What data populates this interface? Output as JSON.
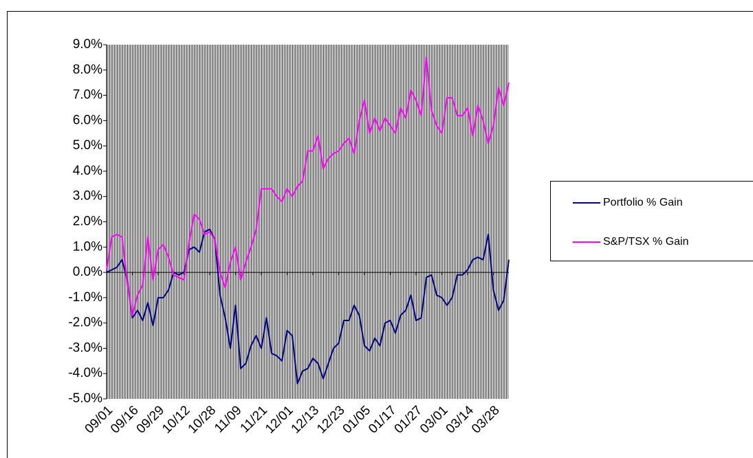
{
  "chart_data": {
    "type": "line",
    "categories": [
      "09/01",
      null,
      null,
      null,
      null,
      "09/16",
      null,
      null,
      null,
      null,
      "09/29",
      null,
      null,
      null,
      null,
      "10/12",
      null,
      null,
      null,
      null,
      "10/28",
      null,
      null,
      null,
      null,
      "11/09",
      null,
      null,
      null,
      null,
      "11/21",
      null,
      null,
      null,
      null,
      "12/01",
      null,
      null,
      null,
      null,
      "12/13",
      null,
      null,
      null,
      null,
      "12/23",
      null,
      null,
      null,
      null,
      "01/05",
      null,
      null,
      null,
      null,
      "01/17",
      null,
      null,
      null,
      null,
      "01/27",
      null,
      null,
      null,
      null,
      "03/01",
      null,
      null,
      null,
      null,
      "03/14",
      null,
      null,
      null,
      null,
      "03/28",
      null,
      null,
      null
    ],
    "series": [
      {
        "name": "Portfolio % Gain",
        "color": "#000080",
        "values": [
          0.0,
          0.1,
          0.2,
          0.5,
          -0.3,
          -1.8,
          -1.5,
          -1.9,
          -1.2,
          -2.1,
          -1.0,
          -1.0,
          -0.7,
          0.0,
          -0.1,
          0.0,
          0.9,
          1.0,
          0.8,
          1.6,
          1.7,
          1.3,
          -0.9,
          -1.8,
          -3.0,
          -1.3,
          -3.8,
          -3.6,
          -2.9,
          -2.5,
          -3.0,
          -1.8,
          -3.2,
          -3.3,
          -3.5,
          -2.3,
          -2.5,
          -4.4,
          -3.9,
          -3.8,
          -3.4,
          -3.6,
          -4.2,
          -3.6,
          -3.0,
          -2.8,
          -1.9,
          -1.9,
          -1.3,
          -1.7,
          -2.9,
          -3.1,
          -2.6,
          -2.9,
          -2.0,
          -1.9,
          -2.4,
          -1.7,
          -1.5,
          -0.9,
          -1.9,
          -1.8,
          -0.2,
          -0.1,
          -0.9,
          -1.0,
          -1.3,
          -1.0,
          -0.1,
          -0.1,
          0.1,
          0.5,
          0.6,
          0.5,
          1.5,
          -0.7,
          -1.5,
          -1.1,
          0.5
        ]
      },
      {
        "name": "S&P/TSX % Gain",
        "color": "#ff00ff",
        "values": [
          0.1,
          1.4,
          1.5,
          1.4,
          -0.4,
          -1.7,
          -0.9,
          -0.5,
          1.4,
          -0.3,
          0.9,
          1.1,
          0.6,
          -0.1,
          -0.2,
          -0.3,
          1.2,
          2.3,
          2.1,
          1.5,
          1.6,
          1.3,
          0.0,
          -0.6,
          0.4,
          1.0,
          -0.3,
          0.4,
          1.0,
          1.7,
          3.3,
          3.3,
          3.3,
          3.0,
          2.8,
          3.3,
          3.0,
          3.4,
          3.6,
          4.8,
          4.8,
          5.4,
          4.1,
          4.5,
          4.7,
          4.8,
          5.1,
          5.3,
          4.7,
          6.0,
          6.8,
          5.5,
          6.1,
          5.6,
          6.1,
          5.8,
          5.5,
          6.5,
          6.1,
          7.2,
          6.8,
          6.2,
          8.5,
          6.4,
          5.8,
          5.5,
          6.9,
          6.9,
          6.2,
          6.2,
          6.5,
          5.4,
          6.6,
          6.0,
          5.1,
          5.8,
          7.3,
          6.6,
          7.5
        ]
      }
    ],
    "ylim": [
      -5,
      9
    ],
    "yticks": [
      {
        "value": 9,
        "label": "9.0%"
      },
      {
        "value": 8,
        "label": "8.0%"
      },
      {
        "value": 7,
        "label": "7.0%"
      },
      {
        "value": 6,
        "label": "6.0%"
      },
      {
        "value": 5,
        "label": "5.0%"
      },
      {
        "value": 4,
        "label": "4.0%"
      },
      {
        "value": 3,
        "label": "3.0%"
      },
      {
        "value": 2,
        "label": "2.0%"
      },
      {
        "value": 1,
        "label": "1.0%"
      },
      {
        "value": 0,
        "label": "0.0%"
      },
      {
        "value": -1,
        "label": "-1.0%"
      },
      {
        "value": -2,
        "label": "-2.0%"
      },
      {
        "value": -3,
        "label": "-3.0%"
      },
      {
        "value": -4,
        "label": "-4.0%"
      },
      {
        "value": -5,
        "label": "-5.0%"
      }
    ],
    "grid": false,
    "legend": "right"
  }
}
